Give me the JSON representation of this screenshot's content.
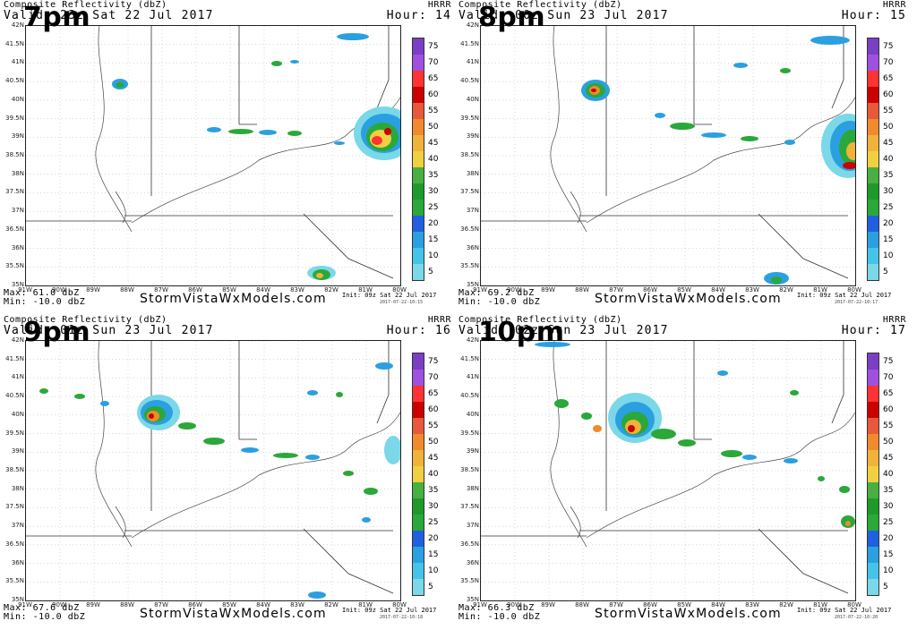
{
  "figure": {
    "product": "Composite Reflectivity (dbZ)",
    "model": "HRRR",
    "credit": "StormVistaWxModels.com",
    "init": "Init: 09z Sat 22 Jul 2017",
    "colorbar": {
      "ticks": [
        "75",
        "70",
        "65",
        "60",
        "55",
        "50",
        "45",
        "40",
        "35",
        "30",
        "25",
        "20",
        "15",
        "10",
        "5"
      ],
      "colors": [
        "#7a3fc4",
        "#a050e0",
        "#ff3333",
        "#cc0000",
        "#e8583a",
        "#f08a2c",
        "#f0b23a",
        "#f0d040",
        "#48b040",
        "#1e9a2a",
        "#2aa83a",
        "#2060e0",
        "#2aa0e0",
        "#44c4e8",
        "#7ad8e8"
      ]
    },
    "latitude_labels": [
      "42N",
      "41.5N",
      "41N",
      "40.5N",
      "40N",
      "39.5N",
      "39N",
      "38.5N",
      "38N",
      "37.5N",
      "37N",
      "36.5N",
      "36N",
      "35.5N",
      "35N"
    ],
    "longitude_labels": [
      "91W",
      "90W",
      "89W",
      "88W",
      "87W",
      "86W",
      "85W",
      "84W",
      "83W",
      "82W",
      "81W",
      "80W"
    ],
    "colors": {
      "background": "#ffffff",
      "border": "#333333",
      "grid": "#b0b0b0"
    },
    "panels": [
      {
        "label": "7pm",
        "valid": "Valid: 23z Sat 22 Jul 2017",
        "hour": "Hour: 14",
        "max": "Max: 61.0 dbZ",
        "min": "Min: -10.0 dbZ",
        "stamp": "2017-07-22-10:15"
      },
      {
        "label": "8pm",
        "valid": "Valid: 00z Sun 23 Jul 2017",
        "hour": "Hour: 15",
        "max": "Max: 69.2 dbZ",
        "min": "Min: -10.0 dbZ",
        "stamp": "2017-07-22-10:17"
      },
      {
        "label": "9pm",
        "valid": "Valid: 01z Sun 23 Jul 2017",
        "hour": "Hour: 16",
        "max": "Max: 67.6 dbZ",
        "min": "Min: -10.0 dbZ",
        "stamp": "2017-07-22-10:18"
      },
      {
        "label": "10pm",
        "valid": "Valid: 02z Sun 23 Jul 2017",
        "hour": "Hour: 17",
        "max": "Max: 66.3 dbZ",
        "min": "Min: -10.0 dbZ",
        "stamp": "2017-07-22-10:20"
      }
    ]
  }
}
